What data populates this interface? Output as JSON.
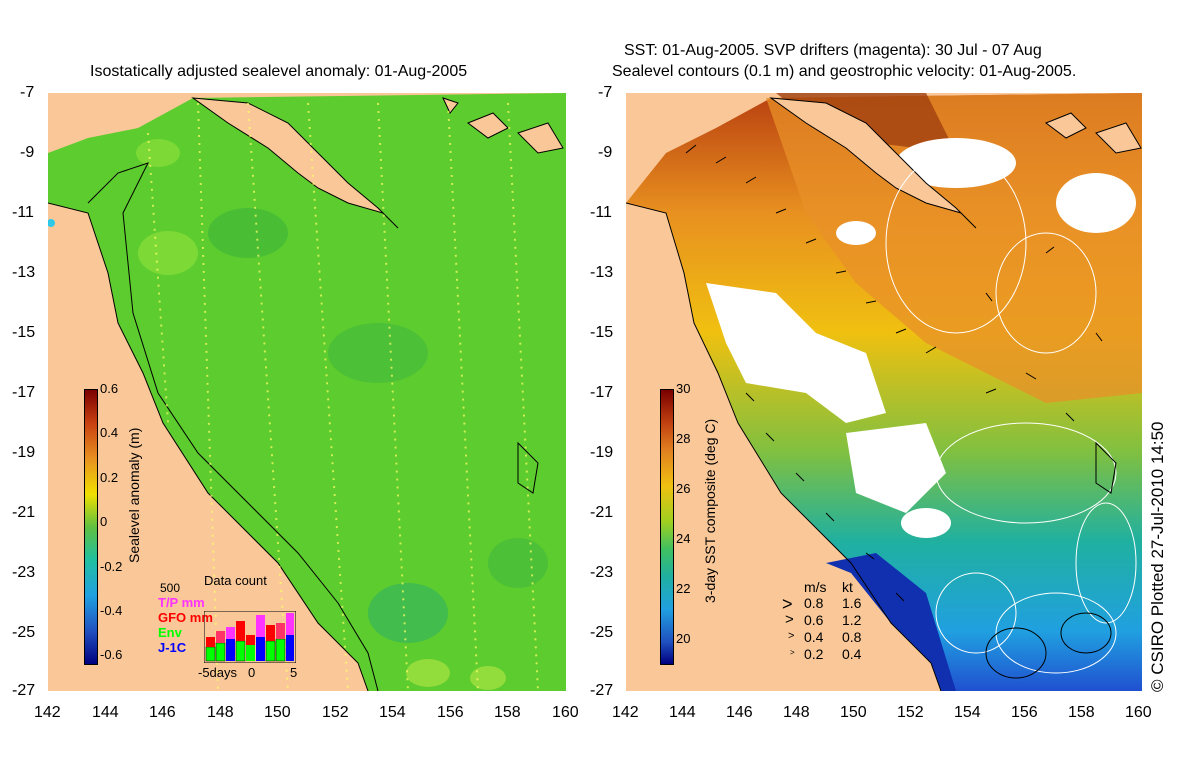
{
  "left_panel": {
    "title": "Isostatically adjusted sealevel anomaly: 01-Aug-2005",
    "colorbar_label": "Sealevel anomaly (m)",
    "colorbar_ticks": [
      "0.6",
      "0.4",
      "0.2",
      "0",
      "-0.2",
      "-0.4",
      "-0.6"
    ],
    "colorbar_range": [
      -0.6,
      0.6
    ],
    "data_count": {
      "title": "Data count",
      "scale": "500",
      "legend": [
        {
          "label": "T/P mm",
          "color": "#ff33ff"
        },
        {
          "label": "GFO mm",
          "color": "#ff0000"
        },
        {
          "label": "Env",
          "color": "#00ff00"
        },
        {
          "label": "J-1C",
          "color": "#0000ff"
        }
      ],
      "xaxis": [
        "-5days",
        "0",
        "5"
      ]
    }
  },
  "right_panel": {
    "title_line1": "SST: 01-Aug-2005. SVP drifters (magenta): 30 Jul - 07 Aug",
    "title_line2": "Sealevel contours (0.1 m) and geostrophic velocity: 01-Aug-2005.",
    "colorbar_label": "3-day SST composite (deg C)",
    "colorbar_ticks": [
      "30",
      "28",
      "26",
      "24",
      "22",
      "20"
    ],
    "colorbar_range": [
      19,
      30
    ],
    "velocity_legend": {
      "header_ms": "m/s",
      "header_kt": "kt",
      "rows": [
        {
          "ms": "0.8",
          "kt": "1.6"
        },
        {
          "ms": "0.6",
          "kt": "1.2"
        },
        {
          "ms": "0.4",
          "kt": "0.8"
        },
        {
          "ms": "0.2",
          "kt": "0.4"
        }
      ]
    }
  },
  "axes": {
    "lat_ticks": [
      "-7",
      "-9",
      "-11",
      "-13",
      "-15",
      "-17",
      "-19",
      "-21",
      "-23",
      "-25",
      "-27"
    ],
    "lon_ticks": [
      "142",
      "144",
      "146",
      "148",
      "150",
      "152",
      "154",
      "156",
      "158",
      "160"
    ],
    "lat_range": [
      -27,
      -7
    ],
    "lon_range": [
      142,
      160
    ]
  },
  "credit": "© CSIRO Plotted 27-Jul-2010 14:50",
  "colors": {
    "land": "#fac898",
    "ocean_anomaly": "#5cd02c",
    "sst_white": "#ffffff"
  }
}
